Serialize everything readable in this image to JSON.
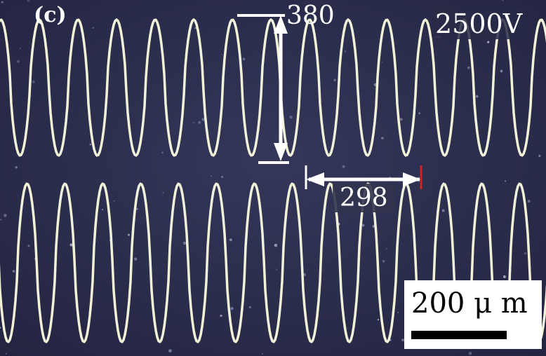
{
  "figure": {
    "panel_label": "(c)",
    "voltage_label": "2500V",
    "vertical_dimension": "380",
    "horizontal_dimension": "298",
    "scale_bar_text": "200 μ m"
  },
  "colors": {
    "background": "#2a2c4a",
    "trace": "#f2f2d8",
    "arrow": "#ffffff",
    "marker": "#d02020"
  }
}
